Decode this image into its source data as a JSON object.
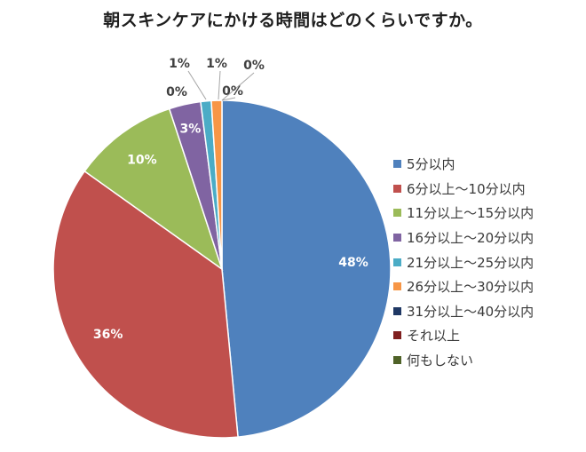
{
  "chart_data": {
    "type": "pie",
    "title": "朝スキンケアにかける時間はどのくらいですか。",
    "slices": [
      {
        "label": "5分以内",
        "value": 48,
        "value_label": "48%",
        "color": "#4f81bd"
      },
      {
        "label": "6分以上～10分以内",
        "value": 36,
        "value_label": "36%",
        "color": "#c0504d"
      },
      {
        "label": "11分以上～15分以内",
        "value": 10,
        "value_label": "10%",
        "color": "#9bbb59"
      },
      {
        "label": "16分以上～20分以内",
        "value": 3,
        "value_label": "3%",
        "color": "#8064a2"
      },
      {
        "label": "21分以上～25分以内",
        "value": 1,
        "value_label": "1%",
        "color": "#4bacc6"
      },
      {
        "label": "26分以上～30分以内",
        "value": 1,
        "value_label": "1%",
        "color": "#f79646"
      },
      {
        "label": "31分以上～40分以内",
        "value": 0,
        "value_label": "0%",
        "color": "#1f3864"
      },
      {
        "label": "それ以上",
        "value": 0,
        "value_label": "0%",
        "color": "#7f1f1f"
      },
      {
        "label": "何もしない",
        "value": 0,
        "value_label": "0%",
        "color": "#4f6228"
      }
    ],
    "legend_position": "right"
  }
}
